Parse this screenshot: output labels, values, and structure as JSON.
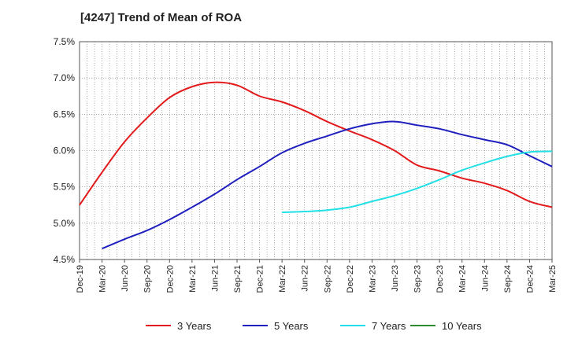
{
  "chart_data": {
    "type": "line",
    "title": "[4247]  Trend of Mean of ROA",
    "x_tick_labels": [
      "Dec-19",
      "Mar-20",
      "Jun-20",
      "Sep-20",
      "Dec-20",
      "Mar-21",
      "Jun-21",
      "Sep-21",
      "Dec-21",
      "Mar-22",
      "Jun-22",
      "Sep-22",
      "Dec-22",
      "Mar-23",
      "Jun-23",
      "Sep-23",
      "Dec-23",
      "Mar-24",
      "Jun-24",
      "Sep-24",
      "Dec-24",
      "Mar-25"
    ],
    "y_tick_labels": [
      "7.5%",
      "7.0%",
      "6.5%",
      "6.0%",
      "5.5%",
      "5.0%",
      "4.5%"
    ],
    "ylim": [
      4.5,
      7.5
    ],
    "y_unit": "%",
    "grid": true,
    "legend_position": "bottom",
    "series": [
      {
        "name": "3 Years",
        "color": "#e31a1c",
        "values": [
          5.25,
          5.7,
          6.12,
          6.45,
          6.73,
          6.88,
          6.94,
          6.9,
          6.75,
          6.67,
          6.55,
          6.4,
          6.27,
          6.15,
          6.0,
          5.8,
          5.72,
          5.62,
          5.55,
          5.45,
          5.3,
          5.22
        ]
      },
      {
        "name": "5 Years",
        "color": "#1f1fbf",
        "values": [
          null,
          4.65,
          4.78,
          4.9,
          5.05,
          5.22,
          5.4,
          5.6,
          5.78,
          5.97,
          6.1,
          6.2,
          6.3,
          6.37,
          6.4,
          6.35,
          6.3,
          6.22,
          6.15,
          6.08,
          5.93,
          5.78
        ]
      },
      {
        "name": "7 Years",
        "color": "#22e0e6",
        "values": [
          null,
          null,
          null,
          null,
          null,
          null,
          null,
          null,
          null,
          5.15,
          5.16,
          5.18,
          5.22,
          5.3,
          5.38,
          5.48,
          5.6,
          5.73,
          5.83,
          5.92,
          5.98,
          5.99
        ]
      },
      {
        "name": "10 Years",
        "color": "#2e8b2e",
        "values": []
      }
    ]
  }
}
